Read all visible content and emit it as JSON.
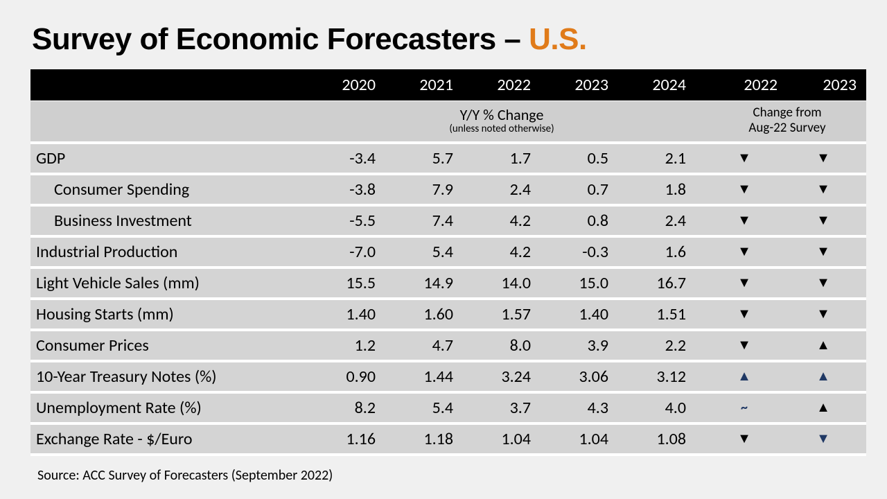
{
  "title_prefix": "Survey of Economic Forecasters – ",
  "title_accent": "U.S.",
  "years": [
    "2020",
    "2021",
    "2022",
    "2023",
    "2024"
  ],
  "change_years": [
    "2022",
    "2023"
  ],
  "subheader_main": "Y/Y % Change",
  "subheader_main_small": "(unless noted otherwise)",
  "subheader_change_line1": "Change from",
  "subheader_change_line2": "Aug-22 Survey",
  "rows": [
    {
      "label": "GDP",
      "indent": false,
      "vals": [
        "-3.4",
        "5.7",
        "1.7",
        "0.5",
        "2.1"
      ],
      "chg": [
        "down",
        "down"
      ]
    },
    {
      "label": "Consumer Spending",
      "indent": true,
      "vals": [
        "-3.8",
        "7.9",
        "2.4",
        "0.7",
        "1.8"
      ],
      "chg": [
        "down",
        "down"
      ]
    },
    {
      "label": "Business Investment",
      "indent": true,
      "vals": [
        "-5.5",
        "7.4",
        "4.2",
        "0.8",
        "2.4"
      ],
      "chg": [
        "down",
        "down"
      ]
    },
    {
      "label": "Industrial Production",
      "indent": false,
      "vals": [
        "-7.0",
        "5.4",
        "4.2",
        "-0.3",
        "1.6"
      ],
      "chg": [
        "down",
        "down"
      ]
    },
    {
      "label": "Light Vehicle Sales (mm)",
      "indent": false,
      "vals": [
        "15.5",
        "14.9",
        "14.0",
        "15.0",
        "16.7"
      ],
      "chg": [
        "down",
        "down"
      ]
    },
    {
      "label": "Housing Starts (mm)",
      "indent": false,
      "vals": [
        "1.40",
        "1.60",
        "1.57",
        "1.40",
        "1.51"
      ],
      "chg": [
        "down",
        "down"
      ]
    },
    {
      "label": "Consumer Prices",
      "indent": false,
      "vals": [
        "1.2",
        "4.7",
        "8.0",
        "3.9",
        "2.2"
      ],
      "chg": [
        "down",
        "up"
      ]
    },
    {
      "label": "10-Year Treasury Notes (%)",
      "indent": false,
      "vals": [
        "0.90",
        "1.44",
        "3.24",
        "3.06",
        "3.12"
      ],
      "chg": [
        "up-navy",
        "up-navy"
      ]
    },
    {
      "label": "Unemployment Rate (%)",
      "indent": false,
      "vals": [
        "8.2",
        "5.4",
        "3.7",
        "4.3",
        "4.0"
      ],
      "chg": [
        "flat",
        "up"
      ]
    },
    {
      "label": "Exchange Rate - $/Euro",
      "indent": false,
      "vals": [
        "1.16",
        "1.18",
        "1.04",
        "1.04",
        "1.08"
      ],
      "chg": [
        "down",
        "down-navy"
      ]
    }
  ],
  "source": "Source: ACC Survey of Forecasters (September 2022)",
  "colors": {
    "accent": "#e07b1a",
    "navy": "#1f3864",
    "header_bg": "#000000",
    "row_bg": "#d4d4d4",
    "subhead_bg": "#cfcfcf"
  }
}
